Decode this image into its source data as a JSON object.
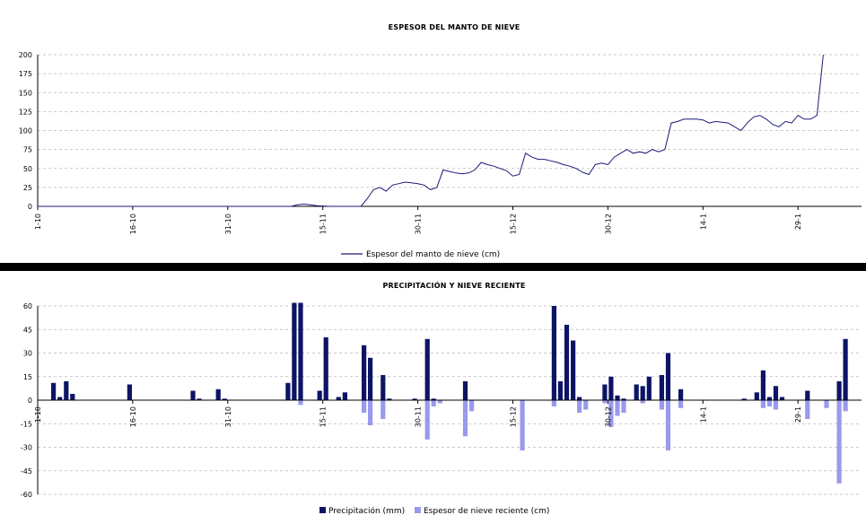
{
  "chart_data": [
    {
      "type": "line",
      "title": "ESPESOR DEL MANTO DE NIEVE",
      "ylim": [
        0,
        200
      ],
      "y_ticks": [
        0,
        25,
        50,
        75,
        100,
        125,
        150,
        175,
        200
      ],
      "x_tick_labels": [
        "1-10",
        "16-10",
        "31-10",
        "15-11",
        "30-11",
        "15-12",
        "30-12",
        "14-1",
        "29-1"
      ],
      "grid": true,
      "legend": "bottom",
      "series": [
        {
          "name": "Espesor del manto de nieve (cm)",
          "color": "#1a1a7a",
          "points": [
            [
              0,
              0
            ],
            [
              40,
              0
            ],
            [
              41,
              2
            ],
            [
              42,
              3
            ],
            [
              43,
              2
            ],
            [
              44,
              1
            ],
            [
              46,
              0
            ],
            [
              51,
              0
            ],
            [
              52,
              10
            ],
            [
              53,
              22
            ],
            [
              54,
              25
            ],
            [
              55,
              20
            ],
            [
              56,
              28
            ],
            [
              57,
              30
            ],
            [
              58,
              32
            ],
            [
              59,
              31
            ],
            [
              60,
              30
            ],
            [
              61,
              28
            ],
            [
              62,
              22
            ],
            [
              63,
              25
            ],
            [
              64,
              48
            ],
            [
              65,
              46
            ],
            [
              66,
              44
            ],
            [
              67,
              43
            ],
            [
              68,
              44
            ],
            [
              69,
              48
            ],
            [
              70,
              58
            ],
            [
              71,
              55
            ],
            [
              72,
              53
            ],
            [
              73,
              50
            ],
            [
              74,
              47
            ],
            [
              75,
              40
            ],
            [
              76,
              42
            ],
            [
              77,
              70
            ],
            [
              78,
              65
            ],
            [
              79,
              62
            ],
            [
              80,
              62
            ],
            [
              81,
              60
            ],
            [
              82,
              58
            ],
            [
              83,
              55
            ],
            [
              84,
              53
            ],
            [
              85,
              50
            ],
            [
              86,
              45
            ],
            [
              87,
              42
            ],
            [
              88,
              55
            ],
            [
              89,
              57
            ],
            [
              90,
              55
            ],
            [
              91,
              65
            ],
            [
              92,
              70
            ],
            [
              93,
              75
            ],
            [
              94,
              70
            ],
            [
              95,
              72
            ],
            [
              96,
              70
            ],
            [
              97,
              75
            ],
            [
              98,
              72
            ],
            [
              99,
              75
            ],
            [
              100,
              110
            ],
            [
              101,
              112
            ],
            [
              102,
              115
            ],
            [
              103,
              115
            ],
            [
              104,
              115
            ],
            [
              105,
              114
            ],
            [
              106,
              110
            ],
            [
              107,
              112
            ],
            [
              108,
              111
            ],
            [
              109,
              110
            ],
            [
              110,
              105
            ],
            [
              111,
              100
            ],
            [
              112,
              110
            ],
            [
              113,
              118
            ],
            [
              114,
              120
            ],
            [
              115,
              115
            ],
            [
              116,
              108
            ],
            [
              117,
              105
            ],
            [
              118,
              112
            ],
            [
              119,
              110
            ],
            [
              120,
              120
            ],
            [
              121,
              115
            ],
            [
              122,
              115
            ],
            [
              123,
              120
            ],
            [
              124,
              200
            ]
          ]
        }
      ]
    },
    {
      "type": "bar",
      "title": "PRECIPITACIÓN Y NIEVE RECIENTE",
      "ylim": [
        -60,
        60
      ],
      "y_ticks": [
        -60,
        -45,
        -30,
        -15,
        0,
        15,
        30,
        45,
        60
      ],
      "x_tick_labels": [
        "1-10",
        "16-10",
        "31-10",
        "15-11",
        "30-11",
        "15-12",
        "30-12",
        "14-1",
        "29-1"
      ],
      "grid": true,
      "legend": "bottom",
      "series": [
        {
          "name": "Precipitación (mm)",
          "color": "#0d1466",
          "bars": [
            [
              2,
              11
            ],
            [
              3,
              2
            ],
            [
              4,
              12
            ],
            [
              5,
              4
            ],
            [
              14,
              10
            ],
            [
              24,
              6
            ],
            [
              25,
              1
            ],
            [
              28,
              7
            ],
            [
              29,
              1
            ],
            [
              39,
              11
            ],
            [
              40,
              62
            ],
            [
              41,
              62
            ],
            [
              44,
              6
            ],
            [
              45,
              40
            ],
            [
              47,
              2
            ],
            [
              48,
              5
            ],
            [
              51,
              35
            ],
            [
              52,
              27
            ],
            [
              54,
              16
            ],
            [
              55,
              1
            ],
            [
              59,
              1
            ],
            [
              61,
              39
            ],
            [
              62,
              1
            ],
            [
              67,
              12
            ],
            [
              81,
              60
            ],
            [
              82,
              12
            ],
            [
              83,
              48
            ],
            [
              84,
              38
            ],
            [
              85,
              2
            ],
            [
              89,
              10
            ],
            [
              90,
              15
            ],
            [
              91,
              3
            ],
            [
              92,
              1
            ],
            [
              94,
              10
            ],
            [
              95,
              9
            ],
            [
              96,
              15
            ],
            [
              98,
              16
            ],
            [
              99,
              30
            ],
            [
              101,
              7
            ],
            [
              111,
              1
            ],
            [
              113,
              5
            ],
            [
              114,
              19
            ],
            [
              115,
              2
            ],
            [
              116,
              9
            ],
            [
              117,
              2
            ],
            [
              121,
              6
            ],
            [
              126,
              12
            ],
            [
              127,
              39
            ]
          ]
        },
        {
          "name": "Espesor de nieve reciente (cm)",
          "color": "#9999ee",
          "bars": [
            [
              41,
              -3
            ],
            [
              51,
              -8
            ],
            [
              52,
              -16
            ],
            [
              54,
              -12
            ],
            [
              61,
              -25
            ],
            [
              62,
              -4
            ],
            [
              63,
              -2
            ],
            [
              67,
              -23
            ],
            [
              68,
              -7
            ],
            [
              76,
              -32
            ],
            [
              81,
              -4
            ],
            [
              85,
              -8
            ],
            [
              86,
              -6
            ],
            [
              89,
              -2
            ],
            [
              90,
              -17
            ],
            [
              91,
              -10
            ],
            [
              92,
              -8
            ],
            [
              95,
              -2
            ],
            [
              98,
              -6
            ],
            [
              99,
              -32
            ],
            [
              101,
              -5
            ],
            [
              114,
              -5
            ],
            [
              115,
              -4
            ],
            [
              116,
              -6
            ],
            [
              121,
              -12
            ],
            [
              124,
              -5
            ],
            [
              126,
              -53
            ],
            [
              127,
              -7
            ]
          ]
        }
      ]
    }
  ]
}
